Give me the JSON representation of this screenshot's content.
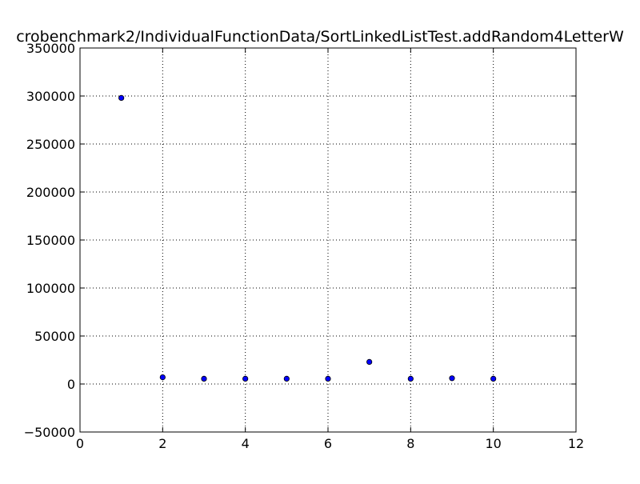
{
  "chart_data": {
    "type": "scatter",
    "title": "crobenchmark2/IndividualFunctionData/SortLinkedListTest.addRandom4LetterW",
    "xlabel": "",
    "ylabel": "",
    "xlim": [
      0,
      12
    ],
    "ylim": [
      -50000,
      350000
    ],
    "xticks": [
      0,
      2,
      4,
      6,
      8,
      10,
      12
    ],
    "yticks": [
      -50000,
      0,
      50000,
      100000,
      150000,
      200000,
      250000,
      300000,
      350000
    ],
    "xtick_labels": [
      "0",
      "2",
      "4",
      "6",
      "8",
      "10",
      "12"
    ],
    "ytick_labels": [
      "−50000",
      "0",
      "50000",
      "100000",
      "150000",
      "200000",
      "250000",
      "300000",
      "350000"
    ],
    "grid": true,
    "marker_color": "#0000ff",
    "points": [
      {
        "x": 1,
        "y": 298000
      },
      {
        "x": 2,
        "y": 7000
      },
      {
        "x": 3,
        "y": 5500
      },
      {
        "x": 4,
        "y": 5500
      },
      {
        "x": 5,
        "y": 5500
      },
      {
        "x": 6,
        "y": 5500
      },
      {
        "x": 7,
        "y": 23000
      },
      {
        "x": 8,
        "y": 5500
      },
      {
        "x": 9,
        "y": 6000
      },
      {
        "x": 10,
        "y": 5500
      }
    ]
  }
}
